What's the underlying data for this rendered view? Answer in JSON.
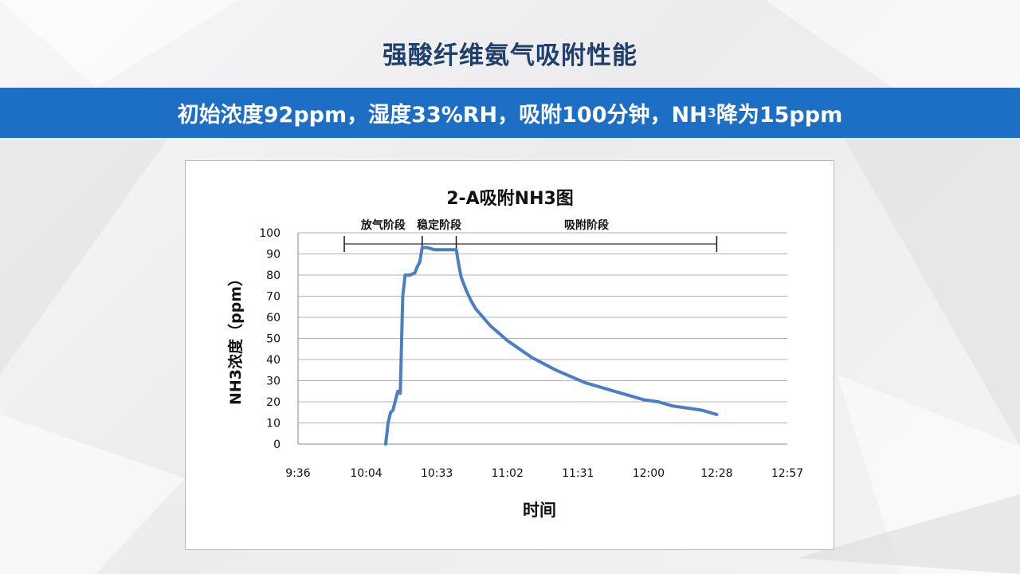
{
  "slide": {
    "title": "强酸纤维氨气吸附性能",
    "banner_pre": "初始浓度92ppm，湿度33%RH，吸附100分钟，NH",
    "banner_sub": "3",
    "banner_post": "降为15ppm"
  },
  "colors": {
    "title": "#1f3f6e",
    "banner": "#1c6fc4",
    "line": "#4a7fc4"
  },
  "chart_data": {
    "type": "line",
    "title": "2-A吸附NH3图",
    "xlabel": "时间",
    "ylabel": "NH3浓度（ppm）",
    "xlim": [
      "9:36",
      "12:57"
    ],
    "ylim": [
      0,
      100
    ],
    "x_ticks": [
      "9:36",
      "10:04",
      "10:33",
      "11:02",
      "11:31",
      "12:00",
      "12:28",
      "12:57"
    ],
    "y_ticks": [
      0,
      10,
      20,
      30,
      40,
      50,
      60,
      70,
      80,
      90,
      100
    ],
    "grid": true,
    "phases": [
      {
        "label": "放气阶段",
        "start": "9:55",
        "end": "10:27"
      },
      {
        "label": "稳定阶段",
        "start": "10:27",
        "end": "10:41"
      },
      {
        "label": "吸附阶段",
        "start": "10:41",
        "end": "12:28"
      }
    ],
    "series": [
      {
        "x": [
          "10:12",
          "10:13",
          "10:14",
          "10:15",
          "10:17",
          "10:18",
          "10:19",
          "10:20",
          "10:21",
          "10:22",
          "10:24",
          "10:25",
          "10:26",
          "10:27",
          "10:29",
          "10:32",
          "10:36",
          "10:41",
          "10:42",
          "10:43",
          "10:45",
          "10:47",
          "10:49",
          "10:52",
          "10:55",
          "10:58",
          "11:02",
          "11:07",
          "11:12",
          "11:17",
          "11:22",
          "11:28",
          "11:34",
          "11:40",
          "11:46",
          "11:52",
          "11:58",
          "12:04",
          "12:10",
          "12:16",
          "12:22",
          "12:28"
        ],
        "values": [
          0,
          10,
          15,
          16,
          25,
          24,
          70,
          80,
          80,
          80,
          81,
          84,
          86,
          93,
          93,
          92,
          92,
          92,
          85,
          79,
          73,
          68,
          64,
          60,
          56,
          53,
          49,
          45,
          41,
          38,
          35,
          32,
          29,
          27,
          25,
          23,
          21,
          20,
          18,
          17,
          16,
          14
        ]
      }
    ]
  }
}
